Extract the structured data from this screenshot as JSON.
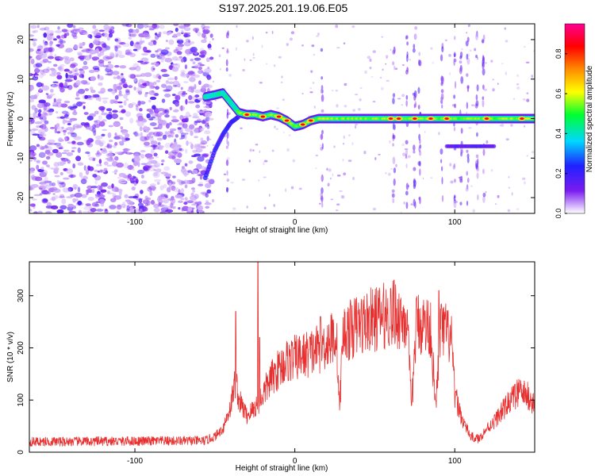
{
  "title": "S197.2025.201.19.06.E05",
  "colors": {
    "snr_line": "#e83030",
    "band": [
      "#ffffff",
      "#7a1cf0",
      "#2020ff",
      "#00d8ff",
      "#00ff30",
      "#ffff00",
      "#ff8c00",
      "#ff0000",
      "#ff0090"
    ]
  },
  "chart_data": [
    {
      "type": "heatmap",
      "xlabel": "Height of straight line (km)",
      "ylabel": "Frequency (Hz)",
      "xlim": [
        -166,
        150
      ],
      "ylim": [
        -24,
        24
      ],
      "xticks": [
        -100,
        0,
        100
      ],
      "xtick_labels": [
        "-100",
        "0",
        "100"
      ],
      "yticks": [
        -20,
        -10,
        0,
        10,
        20
      ],
      "ytick_labels": [
        "-20",
        "-10",
        "0",
        "10",
        "20"
      ],
      "colorbar": {
        "label": "Normalized spectral amplitude",
        "range": [
          0,
          0.95
        ],
        "ticks": [
          0.0,
          0.2,
          0.4,
          0.6,
          0.8
        ],
        "tick_labels": [
          "0.0",
          "0.2",
          "0.4",
          "0.6",
          "0.8"
        ]
      },
      "noise_region_x": [
        -166,
        -56
      ],
      "carrier_track": [
        {
          "x": -56,
          "y": 5.5
        },
        {
          "x": -50,
          "y": 6
        },
        {
          "x": -45,
          "y": 6.5
        },
        {
          "x": -40,
          "y": 4
        },
        {
          "x": -35,
          "y": 1.5
        },
        {
          "x": -30,
          "y": 1
        },
        {
          "x": -25,
          "y": 1
        },
        {
          "x": -20,
          "y": 0.5
        },
        {
          "x": -15,
          "y": 1
        },
        {
          "x": -10,
          "y": 0.5
        },
        {
          "x": -5,
          "y": -0.5
        },
        {
          "x": 0,
          "y": -2
        },
        {
          "x": 5,
          "y": -1.5
        },
        {
          "x": 10,
          "y": -0.5
        },
        {
          "x": 15,
          "y": 0
        },
        {
          "x": 30,
          "y": 0
        },
        {
          "x": 60,
          "y": 0
        },
        {
          "x": 70,
          "y": 0
        },
        {
          "x": 80,
          "y": 0
        },
        {
          "x": 100,
          "y": 0
        },
        {
          "x": 120,
          "y": 0
        },
        {
          "x": 140,
          "y": 0
        },
        {
          "x": 150,
          "y": 0
        }
      ],
      "lower_branch": [
        {
          "x": -56,
          "y": -15
        },
        {
          "x": -50,
          "y": -8
        },
        {
          "x": -45,
          "y": -4
        },
        {
          "x": -40,
          "y": -1
        },
        {
          "x": -35,
          "y": 0.5
        }
      ],
      "secondary_track": [
        {
          "x": 95,
          "y": -7
        },
        {
          "x": 110,
          "y": -7
        },
        {
          "x": 125,
          "y": -7
        }
      ],
      "hot_spots_x": [
        -30,
        -20,
        -10,
        -5,
        5,
        10,
        60,
        65,
        75,
        85,
        95,
        120,
        142
      ]
    },
    {
      "type": "line",
      "xlabel": "Height of straight line (km)",
      "ylabel": "SNR (10 * v/v)",
      "xlim": [
        -166,
        150
      ],
      "ylim": [
        0,
        365
      ],
      "xticks": [
        -100,
        0,
        100
      ],
      "xtick_labels": [
        "-100",
        "0",
        "100"
      ],
      "yticks": [
        0,
        100,
        200,
        300
      ],
      "ytick_labels": [
        "0",
        "100",
        "200",
        "300"
      ],
      "envelope": [
        {
          "x": -166,
          "y": 20
        },
        {
          "x": -56,
          "y": 22
        },
        {
          "x": -50,
          "y": 30
        },
        {
          "x": -45,
          "y": 45
        },
        {
          "x": -40,
          "y": 90
        },
        {
          "x": -37,
          "y": 140
        },
        {
          "x": -35,
          "y": 100
        },
        {
          "x": -30,
          "y": 70
        },
        {
          "x": -25,
          "y": 85
        },
        {
          "x": -20,
          "y": 110
        },
        {
          "x": -15,
          "y": 140
        },
        {
          "x": -10,
          "y": 160
        },
        {
          "x": -5,
          "y": 175
        },
        {
          "x": 0,
          "y": 180
        },
        {
          "x": 10,
          "y": 190
        },
        {
          "x": 20,
          "y": 210
        },
        {
          "x": 26,
          "y": 225
        },
        {
          "x": 28,
          "y": 80
        },
        {
          "x": 30,
          "y": 225
        },
        {
          "x": 40,
          "y": 245
        },
        {
          "x": 50,
          "y": 255
        },
        {
          "x": 60,
          "y": 265
        },
        {
          "x": 70,
          "y": 255
        },
        {
          "x": 73,
          "y": 85
        },
        {
          "x": 76,
          "y": 250
        },
        {
          "x": 85,
          "y": 240
        },
        {
          "x": 88,
          "y": 80
        },
        {
          "x": 91,
          "y": 235
        },
        {
          "x": 95,
          "y": 230
        },
        {
          "x": 98,
          "y": 210
        },
        {
          "x": 100,
          "y": 110
        },
        {
          "x": 105,
          "y": 60
        },
        {
          "x": 110,
          "y": 30
        },
        {
          "x": 115,
          "y": 25
        },
        {
          "x": 120,
          "y": 45
        },
        {
          "x": 125,
          "y": 60
        },
        {
          "x": 130,
          "y": 80
        },
        {
          "x": 135,
          "y": 100
        },
        {
          "x": 140,
          "y": 115
        },
        {
          "x": 145,
          "y": 110
        },
        {
          "x": 150,
          "y": 90
        }
      ],
      "spikes": [
        {
          "x": -37,
          "y": 270
        },
        {
          "x": -23,
          "y": 365
        },
        {
          "x": -22,
          "y": 220
        },
        {
          "x": 16,
          "y": 260
        },
        {
          "x": 62,
          "y": 330
        },
        {
          "x": 90,
          "y": 310
        }
      ]
    }
  ]
}
